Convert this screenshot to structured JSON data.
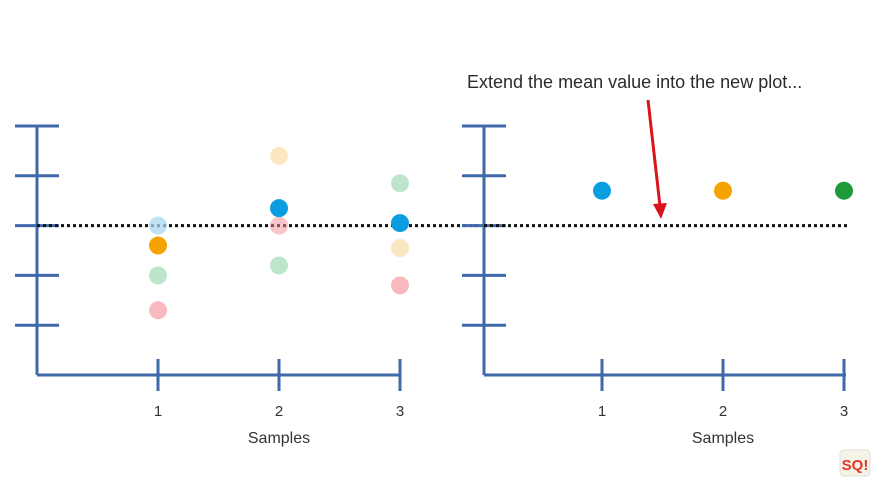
{
  "annotation": {
    "text": "Extend the mean value into the new plot..."
  },
  "logo": {
    "text": "SQ!",
    "color": "#e0352b"
  },
  "colors": {
    "axis": "#3f69a8",
    "arrow": "#d9141b",
    "mean_line": "#111111"
  },
  "chart_data": [
    {
      "type": "scatter",
      "title": "",
      "xlabel": "Samples",
      "ylabel": "",
      "categories": [
        "1",
        "2",
        "3"
      ],
      "xlim": [
        0,
        3
      ],
      "ylim": [
        0,
        5
      ],
      "mean": 3,
      "grid": false,
      "series": [
        {
          "color": "#a8d8f0",
          "opacity": 0.75,
          "points": [
            {
              "x": 1,
              "y": 3.0
            }
          ]
        },
        {
          "color": "#f5a300",
          "opacity": 1.0,
          "points": [
            {
              "x": 1,
              "y": 2.6
            }
          ]
        },
        {
          "color": "#8fd3a8",
          "opacity": 0.6,
          "points": [
            {
              "x": 1,
              "y": 2.0
            }
          ]
        },
        {
          "color": "#f48a95",
          "opacity": 0.6,
          "points": [
            {
              "x": 1,
              "y": 1.3
            }
          ]
        },
        {
          "color": "#f9d79a",
          "opacity": 0.6,
          "points": [
            {
              "x": 2,
              "y": 4.4
            }
          ]
        },
        {
          "color": "#f48a95",
          "opacity": 0.5,
          "points": [
            {
              "x": 2,
              "y": 3.0
            }
          ]
        },
        {
          "color": "#0a9ee0",
          "opacity": 1.0,
          "points": [
            {
              "x": 2,
              "y": 3.35
            }
          ]
        },
        {
          "color": "#8fd3a8",
          "opacity": 0.6,
          "points": [
            {
              "x": 2,
              "y": 2.2
            }
          ]
        },
        {
          "color": "#8fd3a8",
          "opacity": 0.6,
          "points": [
            {
              "x": 3,
              "y": 3.85
            }
          ]
        },
        {
          "color": "#0a9ee0",
          "opacity": 1.0,
          "points": [
            {
              "x": 3,
              "y": 3.05
            }
          ]
        },
        {
          "color": "#f9d79a",
          "opacity": 0.6,
          "points": [
            {
              "x": 3,
              "y": 2.55
            }
          ]
        },
        {
          "color": "#f48a95",
          "opacity": 0.6,
          "points": [
            {
              "x": 3,
              "y": 1.8
            }
          ]
        }
      ]
    },
    {
      "type": "scatter",
      "title": "",
      "xlabel": "Samples",
      "ylabel": "",
      "categories": [
        "1",
        "2",
        "3"
      ],
      "xlim": [
        0,
        3
      ],
      "ylim": [
        0,
        5
      ],
      "mean": 3,
      "grid": false,
      "series": [
        {
          "color": "#0a9ee0",
          "opacity": 1.0,
          "points": [
            {
              "x": 1,
              "y": 3.7
            }
          ]
        },
        {
          "color": "#f5a300",
          "opacity": 1.0,
          "points": [
            {
              "x": 2,
              "y": 3.7
            }
          ]
        },
        {
          "color": "#1f9a3a",
          "opacity": 1.0,
          "points": [
            {
              "x": 3,
              "y": 3.7
            }
          ]
        }
      ]
    }
  ]
}
